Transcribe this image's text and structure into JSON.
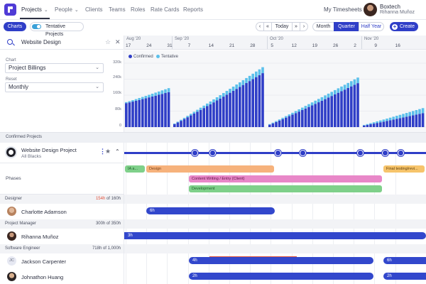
{
  "nav": {
    "items": [
      "Projects",
      "People",
      "Clients",
      "Teams",
      "Roles",
      "Rate Cards",
      "Reports"
    ],
    "timesheets": "My Timesheets",
    "org": "Boxtech",
    "user": "Rihanna Muñoz"
  },
  "toolbar": {
    "charts": "Charts",
    "tentative": "Tentative Projects",
    "today": "Today",
    "prev": "‹",
    "prev_fast": "«",
    "next": "›",
    "next_fast": "»",
    "views": [
      "Month",
      "Quarter",
      "Half Year"
    ],
    "create": "Create"
  },
  "search": {
    "value": "Website Design"
  },
  "chart_panel": {
    "chart_label": "Chart",
    "chart_value": "Project Billings",
    "reset_label": "Reset",
    "reset_value": "Monthly"
  },
  "timeline": {
    "months": [
      "Aug '20",
      "Sep '20",
      "Oct '20",
      "Nov '20"
    ],
    "days": [
      "17",
      "24",
      "31",
      "7",
      "14",
      "21",
      "28",
      "5",
      "12",
      "19",
      "26",
      "2",
      "9",
      "16"
    ]
  },
  "chart_data": {
    "type": "bar",
    "stacked": true,
    "legend": [
      "Confirmed",
      "Tentative"
    ],
    "legend_placement": "top-left",
    "colors": {
      "Confirmed": "#2f3ec7",
      "Tentative": "#5bc0eb"
    },
    "yticks": [
      "320k",
      "240k",
      "160k",
      "80k",
      "0"
    ],
    "ylim": [
      0,
      320000
    ],
    "segments": [
      {
        "period": "Aug",
        "confirmed": [
          120000,
          175000
        ],
        "tentative": [
          5000,
          20000
        ]
      },
      {
        "period": "Sep",
        "confirmed": [
          15000,
          270000
        ],
        "tentative": [
          3000,
          30000
        ]
      },
      {
        "period": "Oct",
        "confirmed": [
          12000,
          220000
        ],
        "tentative": [
          3000,
          28000
        ]
      },
      {
        "period": "Nov",
        "confirmed": [
          8000,
          70000
        ],
        "tentative": [
          3000,
          25000
        ]
      }
    ],
    "grid": true
  },
  "projects": {
    "section_label": "Confirmed Projects",
    "name": "Website Design Project",
    "client": "All Blacks",
    "phases_label": "Phases",
    "phases": [
      {
        "label": "IA a...",
        "color": "#7fd08a"
      },
      {
        "label": "Design",
        "color": "#f6b27c"
      },
      {
        "label": "Content Writing / Entry (Client)",
        "color": "#e887c8"
      },
      {
        "label": "Development",
        "color": "#7fd08a"
      },
      {
        "label": "Final testing/revi...",
        "color": "#f6c46b"
      }
    ]
  },
  "roles": [
    {
      "role": "Designer",
      "hours": "154h",
      "of": "of 160h",
      "over": true,
      "person": "Charlotte Adamson",
      "bars": [
        {
          "label": "6h"
        }
      ]
    },
    {
      "role": "Project Manager",
      "hours": "300h",
      "of": "of 350h",
      "over": false,
      "person": "Rihanna Muñoz",
      "bars": [
        {
          "label": "3h"
        }
      ]
    },
    {
      "role": "Software Engineer",
      "hours": "718h",
      "of": "of 1,000h",
      "over": false,
      "people": [
        {
          "name": "Jackson Carpenter",
          "initials": "JC",
          "bars": [
            {
              "label": "4h"
            },
            {
              "label": "6h"
            }
          ]
        },
        {
          "name": "Johnathon Huang",
          "bars": [
            {
              "label": "2h"
            },
            {
              "label": "2h"
            }
          ]
        }
      ]
    }
  ]
}
